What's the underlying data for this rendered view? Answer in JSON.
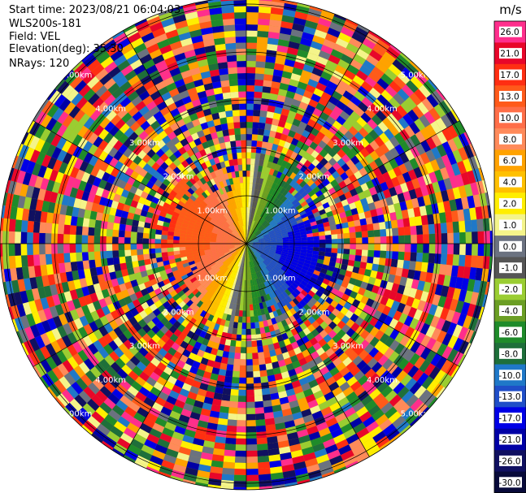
{
  "info": {
    "start_time": "Start time: 2023/08/21 06:04:03",
    "instrument": "WLS200s-181",
    "field": "Field: VEL",
    "elevation": "Elevation(deg): 35.30",
    "nrays": "NRays: 120"
  },
  "chart_data": {
    "type": "heatmap",
    "projection": "polar",
    "field": "VEL",
    "nrays": 120,
    "elevation_deg": 35.3,
    "range_ring_labels": [
      "1.00km",
      "2.00km",
      "3.00km",
      "4.00km",
      "5.00km"
    ],
    "colorbar": {
      "unit": "m/s",
      "levels": [
        {
          "label": "26.0",
          "color": "#ff2e8c"
        },
        {
          "label": "21.0",
          "color": "#e8062a"
        },
        {
          "label": "17.0",
          "color": "#ff2e12"
        },
        {
          "label": "13.0",
          "color": "#ff5a1a"
        },
        {
          "label": "10.0",
          "color": "#ff6e48"
        },
        {
          "label": "8.0",
          "color": "#ff8a5a"
        },
        {
          "label": "6.0",
          "color": "#ffa200"
        },
        {
          "label": "4.0",
          "color": "#ffc000"
        },
        {
          "label": "2.0",
          "color": "#ffee00"
        },
        {
          "label": "1.0",
          "color": "#f4f48a"
        },
        {
          "label": "0.0",
          "color": "#6b7280"
        },
        {
          "label": "-1.0",
          "color": "#555555"
        },
        {
          "label": "-2.0",
          "color": "#9acd32"
        },
        {
          "label": "-4.0",
          "color": "#6b9e24"
        },
        {
          "label": "-6.0",
          "color": "#1f8b2a"
        },
        {
          "label": "-8.0",
          "color": "#1e6f3a"
        },
        {
          "label": "-10.0",
          "color": "#1f78c8"
        },
        {
          "label": "-13.0",
          "color": "#1f4ec8"
        },
        {
          "label": "-17.0",
          "color": "#0000e6"
        },
        {
          "label": "-21.0",
          "color": "#0000a6"
        },
        {
          "label": "-26.0",
          "color": "#101060"
        },
        {
          "label": "-30.0",
          "color": "#080a3a"
        }
      ]
    }
  }
}
